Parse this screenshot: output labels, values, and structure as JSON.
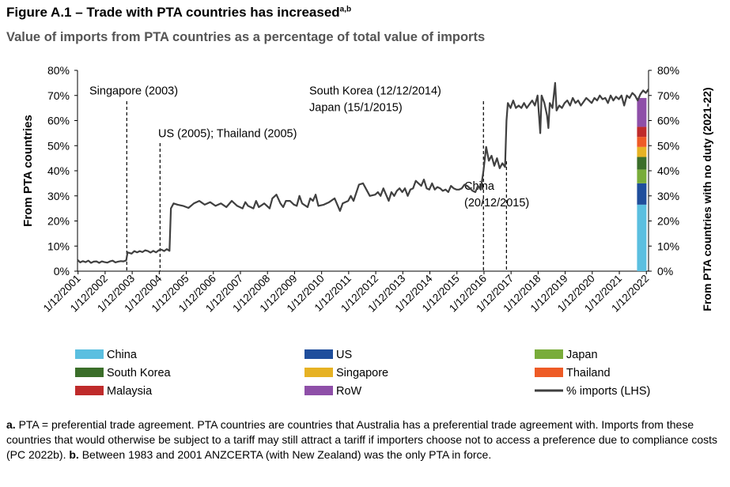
{
  "title": "Figure A.1 – Trade with PTA countries has increased",
  "title_sup": "a,b",
  "subtitle": "Value of imports from PTA countries as a percentage of total value of imports",
  "chart_data": {
    "type": "line",
    "ylabel_left": "From PTA countries",
    "ylabel_right": "From PTA countries with no duty (2021-22)",
    "ylim": [
      0,
      80
    ],
    "yticks": [
      "0%",
      "10%",
      "20%",
      "30%",
      "40%",
      "50%",
      "60%",
      "70%",
      "80%"
    ],
    "xlim": [
      2001.9,
      2023.0
    ],
    "xticks": [
      {
        "label": "1/12/2001",
        "value": 2001.92
      },
      {
        "label": "1/12/2002",
        "value": 2002.92
      },
      {
        "label": "1/12/2003",
        "value": 2003.92
      },
      {
        "label": "1/12/2004",
        "value": 2004.92
      },
      {
        "label": "1/12/2005",
        "value": 2005.92
      },
      {
        "label": "1/12/2006",
        "value": 2006.92
      },
      {
        "label": "1/12/2007",
        "value": 2007.92
      },
      {
        "label": "1/12/2008",
        "value": 2008.92
      },
      {
        "label": "1/12/2009",
        "value": 2009.92
      },
      {
        "label": "1/12/2010",
        "value": 2010.92
      },
      {
        "label": "1/12/2011",
        "value": 2011.92
      },
      {
        "label": "1/12/2012",
        "value": 2012.92
      },
      {
        "label": "1/12/2013",
        "value": 2013.92
      },
      {
        "label": "1/12/2014",
        "value": 2014.92
      },
      {
        "label": "1/12/2015",
        "value": 2015.92
      },
      {
        "label": "1/12/2016",
        "value": 2016.92
      },
      {
        "label": "1/12/2017",
        "value": 2017.92
      },
      {
        "label": "1/12/2018",
        "value": 2018.92
      },
      {
        "label": "1/12/2019",
        "value": 2019.92
      },
      {
        "label": "1/12/2020",
        "value": 2020.92
      },
      {
        "label": "1/12/2021",
        "value": 2021.92
      },
      {
        "label": "1/12/2022",
        "value": 2022.92
      }
    ],
    "series_line": {
      "name": "% imports (LHS)",
      "color": "#404040",
      "points": [
        [
          2001.9,
          4.5
        ],
        [
          2002.0,
          3.5
        ],
        [
          2002.1,
          4.0
        ],
        [
          2002.2,
          3.6
        ],
        [
          2002.3,
          4.2
        ],
        [
          2002.4,
          3.3
        ],
        [
          2002.5,
          3.8
        ],
        [
          2002.6,
          3.9
        ],
        [
          2002.7,
          3.3
        ],
        [
          2002.8,
          3.9
        ],
        [
          2002.9,
          3.6
        ],
        [
          2003.0,
          3.4
        ],
        [
          2003.1,
          3.9
        ],
        [
          2003.2,
          4.2
        ],
        [
          2003.3,
          3.5
        ],
        [
          2003.4,
          3.8
        ],
        [
          2003.5,
          4.0
        ],
        [
          2003.6,
          3.9
        ],
        [
          2003.7,
          4.3
        ],
        [
          2003.75,
          7.5
        ],
        [
          2003.9,
          7.0
        ],
        [
          2004.0,
          8.0
        ],
        [
          2004.1,
          7.5
        ],
        [
          2004.2,
          8.0
        ],
        [
          2004.3,
          7.6
        ],
        [
          2004.4,
          8.3
        ],
        [
          2004.5,
          8.0
        ],
        [
          2004.6,
          7.4
        ],
        [
          2004.7,
          8.1
        ],
        [
          2004.8,
          7.5
        ],
        [
          2004.9,
          8.3
        ],
        [
          2005.0,
          8.6
        ],
        [
          2005.1,
          8.0
        ],
        [
          2005.2,
          8.8
        ],
        [
          2005.3,
          8.1
        ],
        [
          2005.35,
          25.0
        ],
        [
          2005.45,
          27.0
        ],
        [
          2005.6,
          26.5
        ],
        [
          2005.8,
          26.0
        ],
        [
          2006.0,
          25.2
        ],
        [
          2006.2,
          27.0
        ],
        [
          2006.4,
          28.0
        ],
        [
          2006.6,
          26.5
        ],
        [
          2006.8,
          27.5
        ],
        [
          2007.0,
          26.0
        ],
        [
          2007.2,
          27.0
        ],
        [
          2007.4,
          25.5
        ],
        [
          2007.6,
          28.0
        ],
        [
          2007.8,
          26.0
        ],
        [
          2008.0,
          25.0
        ],
        [
          2008.1,
          27.5
        ],
        [
          2008.2,
          26.0
        ],
        [
          2008.4,
          25.0
        ],
        [
          2008.5,
          28.0
        ],
        [
          2008.6,
          25.5
        ],
        [
          2008.8,
          27.0
        ],
        [
          2009.0,
          25.0
        ],
        [
          2009.1,
          29.0
        ],
        [
          2009.25,
          30.5
        ],
        [
          2009.4,
          27.0
        ],
        [
          2009.5,
          25.5
        ],
        [
          2009.6,
          28.0
        ],
        [
          2009.75,
          28.0
        ],
        [
          2009.9,
          26.5
        ],
        [
          2010.0,
          26.0
        ],
        [
          2010.1,
          30.0
        ],
        [
          2010.2,
          27.0
        ],
        [
          2010.4,
          25.5
        ],
        [
          2010.5,
          29.0
        ],
        [
          2010.6,
          28.0
        ],
        [
          2010.7,
          30.5
        ],
        [
          2010.8,
          26.0
        ],
        [
          2011.0,
          26.5
        ],
        [
          2011.2,
          27.5
        ],
        [
          2011.4,
          29.0
        ],
        [
          2011.5,
          26.5
        ],
        [
          2011.6,
          24.0
        ],
        [
          2011.7,
          27.0
        ],
        [
          2011.9,
          28.0
        ],
        [
          2012.0,
          30.0
        ],
        [
          2012.1,
          28.0
        ],
        [
          2012.3,
          34.5
        ],
        [
          2012.45,
          35.0
        ],
        [
          2012.55,
          33.0
        ],
        [
          2012.7,
          30.0
        ],
        [
          2012.9,
          30.5
        ],
        [
          2013.0,
          31.5
        ],
        [
          2013.1,
          30.0
        ],
        [
          2013.2,
          33.0
        ],
        [
          2013.3,
          30.5
        ],
        [
          2013.4,
          28.0
        ],
        [
          2013.5,
          31.5
        ],
        [
          2013.6,
          30.0
        ],
        [
          2013.7,
          32.0
        ],
        [
          2013.8,
          33.0
        ],
        [
          2013.9,
          31.5
        ],
        [
          2014.0,
          33.0
        ],
        [
          2014.1,
          30.0
        ],
        [
          2014.2,
          32.5
        ],
        [
          2014.3,
          33.0
        ],
        [
          2014.4,
          36.0
        ],
        [
          2014.5,
          35.0
        ],
        [
          2014.6,
          34.0
        ],
        [
          2014.7,
          36.5
        ],
        [
          2014.8,
          33.0
        ],
        [
          2014.9,
          32.5
        ],
        [
          2015.0,
          35.0
        ],
        [
          2015.1,
          32.5
        ],
        [
          2015.2,
          33.5
        ],
        [
          2015.3,
          33.0
        ],
        [
          2015.4,
          32.0
        ],
        [
          2015.5,
          32.5
        ],
        [
          2015.6,
          31.5
        ],
        [
          2015.7,
          34.0
        ],
        [
          2015.8,
          33.0
        ],
        [
          2015.9,
          32.5
        ],
        [
          2016.0,
          32.5
        ],
        [
          2016.1,
          33.0
        ],
        [
          2016.2,
          34.5
        ],
        [
          2016.3,
          34.0
        ],
        [
          2016.4,
          33.0
        ],
        [
          2016.5,
          32.0
        ],
        [
          2016.6,
          31.5
        ],
        [
          2016.7,
          34.0
        ],
        [
          2016.8,
          32.5
        ],
        [
          2016.9,
          40.0
        ],
        [
          2017.0,
          49.5
        ],
        [
          2017.1,
          44.0
        ],
        [
          2017.2,
          46.0
        ],
        [
          2017.3,
          42.0
        ],
        [
          2017.4,
          45.0
        ],
        [
          2017.5,
          41.0
        ],
        [
          2017.6,
          43.0
        ],
        [
          2017.7,
          41.5
        ],
        [
          2017.75,
          60.0
        ],
        [
          2017.8,
          67.0
        ],
        [
          2017.9,
          65.0
        ],
        [
          2018.0,
          68.0
        ],
        [
          2018.1,
          65.0
        ],
        [
          2018.2,
          66.0
        ],
        [
          2018.3,
          65.0
        ],
        [
          2018.4,
          67.0
        ],
        [
          2018.5,
          65.0
        ],
        [
          2018.6,
          66.5
        ],
        [
          2018.7,
          68.0
        ],
        [
          2018.8,
          66.0
        ],
        [
          2018.9,
          70.0
        ],
        [
          2019.0,
          55.0
        ],
        [
          2019.05,
          70.0
        ],
        [
          2019.15,
          67.0
        ],
        [
          2019.25,
          62.0
        ],
        [
          2019.3,
          57.0
        ],
        [
          2019.35,
          67.0
        ],
        [
          2019.45,
          65.0
        ],
        [
          2019.55,
          75.0
        ],
        [
          2019.6,
          64.0
        ],
        [
          2019.7,
          66.0
        ],
        [
          2019.8,
          65.0
        ],
        [
          2019.9,
          67.0
        ],
        [
          2020.0,
          68.0
        ],
        [
          2020.1,
          66.0
        ],
        [
          2020.2,
          69.0
        ],
        [
          2020.3,
          67.0
        ],
        [
          2020.4,
          68.0
        ],
        [
          2020.5,
          66.0
        ],
        [
          2020.6,
          67.5
        ],
        [
          2020.7,
          69.0
        ],
        [
          2020.8,
          68.0
        ],
        [
          2020.9,
          67.0
        ],
        [
          2021.0,
          69.0
        ],
        [
          2021.1,
          68.0
        ],
        [
          2021.2,
          70.0
        ],
        [
          2021.3,
          68.5
        ],
        [
          2021.4,
          69.0
        ],
        [
          2021.5,
          67.0
        ],
        [
          2021.6,
          70.0
        ],
        [
          2021.7,
          68.0
        ],
        [
          2021.8,
          69.5
        ],
        [
          2021.9,
          68.5
        ],
        [
          2022.0,
          70.0
        ],
        [
          2022.1,
          66.0
        ],
        [
          2022.2,
          70.0
        ],
        [
          2022.3,
          69.0
        ],
        [
          2022.4,
          71.0
        ],
        [
          2022.5,
          70.0
        ],
        [
          2022.6,
          68.0
        ],
        [
          2022.7,
          70.5
        ],
        [
          2022.8,
          72.0
        ],
        [
          2022.9,
          71.0
        ],
        [
          2023.0,
          72.5
        ]
      ]
    },
    "stacked_bar_rhs": {
      "x": 2022.75,
      "segments": [
        {
          "name": "China",
          "value": 26.5,
          "color": "#5bbfe0"
        },
        {
          "name": "US",
          "value": 8.5,
          "color": "#1f4e9c"
        },
        {
          "name": "Japan",
          "value": 5.5,
          "color": "#79ac3a"
        },
        {
          "name": "South Korea",
          "value": 5.0,
          "color": "#3b6e2a"
        },
        {
          "name": "Singapore",
          "value": 4.0,
          "color": "#e6b224"
        },
        {
          "name": "Thailand",
          "value": 4.0,
          "color": "#ee5b26"
        },
        {
          "name": "Malaysia",
          "value": 4.0,
          "color": "#bf2b2b"
        },
        {
          "name": "RoW",
          "value": 11.5,
          "color": "#8e4fa8"
        }
      ]
    },
    "annotations": [
      {
        "x": 2003.72,
        "lines": [
          "Singapore (2003)"
        ],
        "text_y": 72
      },
      {
        "x": 2004.95,
        "lines": [
          "US (2005); Thailand (2005)"
        ],
        "text_y": 55
      },
      {
        "x": 2016.9,
        "lines": [
          "South Korea (12/12/2014)",
          "Japan (15/1/2015)"
        ],
        "text_y": 72
      },
      {
        "x": 2017.75,
        "lines": [
          "China",
          "(20/12/2015)"
        ],
        "text_y": 34
      }
    ]
  },
  "legend": [
    {
      "label": "China",
      "color": "#5bbfe0",
      "kind": "box"
    },
    {
      "label": "US",
      "color": "#1f4e9c",
      "kind": "box"
    },
    {
      "label": "Japan",
      "color": "#79ac3a",
      "kind": "box"
    },
    {
      "label": "South Korea",
      "color": "#3b6e2a",
      "kind": "box"
    },
    {
      "label": "Singapore",
      "color": "#e6b224",
      "kind": "box"
    },
    {
      "label": "Thailand",
      "color": "#ee5b26",
      "kind": "box"
    },
    {
      "label": "Malaysia",
      "color": "#bf2b2b",
      "kind": "box"
    },
    {
      "label": "RoW",
      "color": "#8e4fa8",
      "kind": "box"
    },
    {
      "label": "% imports (LHS)",
      "color": "#404040",
      "kind": "line"
    }
  ],
  "footnote": {
    "a_label": "a.",
    "a_text": " PTA = preferential trade agreement. PTA countries are countries that Australia has a preferential trade agreement with. Imports from these countries that would otherwise be subject to a tariff may still attract a tariff if importers choose not to access a preference due to compliance costs (PC 2022b). ",
    "b_label": "b.",
    "b_text": " Between 1983 and 2001 ANZCERTA (with New Zealand) was the only PTA in force."
  }
}
